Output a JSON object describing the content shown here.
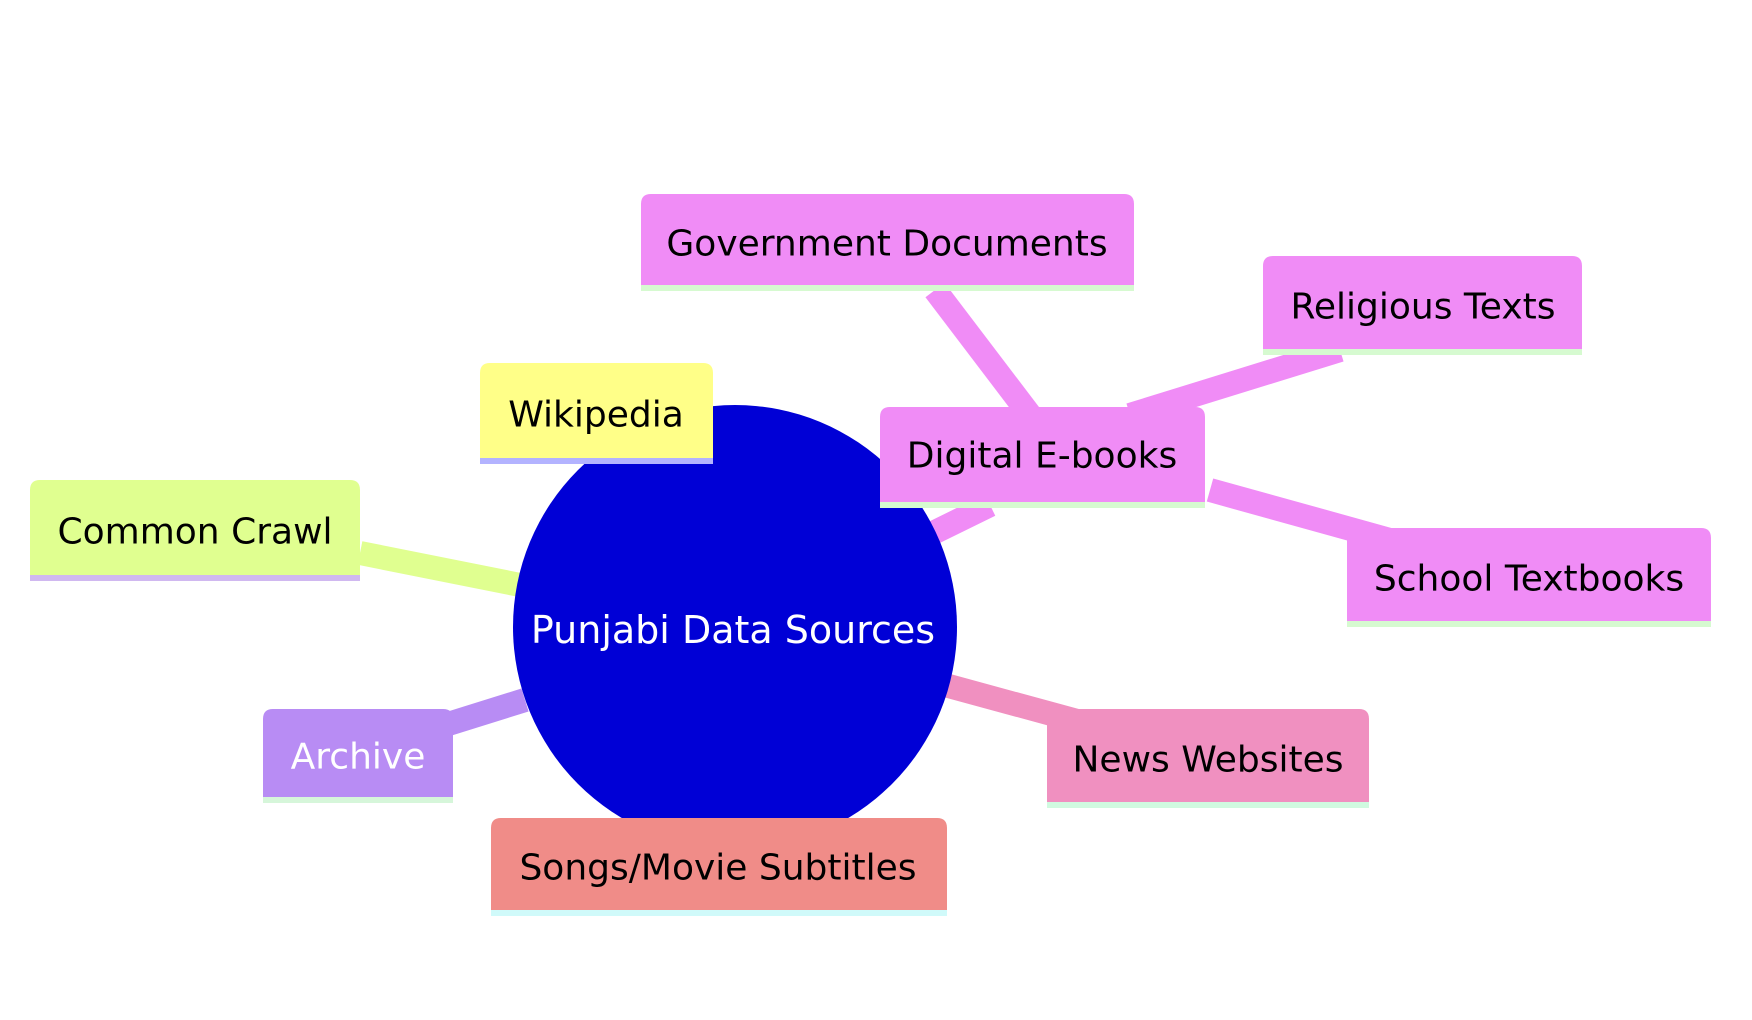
{
  "mindmap": {
    "root": {
      "label": "Punjabi Data Sources",
      "color": "#0000d6",
      "text_color": "#ffffff"
    },
    "nodes": {
      "wikipedia": {
        "label": "Wikipedia",
        "color": "#ffff88",
        "underline": "#b3b3ff",
        "text_color": "#000000"
      },
      "common_crawl": {
        "label": "Common Crawl",
        "color": "#e0ff90",
        "underline": "#d0b8f0",
        "text_color": "#000000"
      },
      "archive": {
        "label": "Archive",
        "color": "#b88cf4",
        "underline": "#d6f6da",
        "text_color": "#ffffff"
      },
      "songs_subtitles": {
        "label": "Songs/Movie Subtitles",
        "color": "#f08c88",
        "underline": "#d0fafa",
        "text_color": "#000000"
      },
      "news_websites": {
        "label": "News Websites",
        "color": "#f090c0",
        "underline": "#d0fae0",
        "text_color": "#000000"
      },
      "digital_ebooks": {
        "label": "Digital E-books",
        "color": "#f08cf6",
        "underline": "#d6fad0",
        "text_color": "#000000"
      },
      "government_documents": {
        "label": "Government Documents",
        "color": "#f08cf6",
        "underline": "#d6fad0",
        "text_color": "#000000"
      },
      "religious_texts": {
        "label": "Religious Texts",
        "color": "#f08cf6",
        "underline": "#d6fad0",
        "text_color": "#000000"
      },
      "school_textbooks": {
        "label": "School Textbooks",
        "color": "#f08cf6",
        "underline": "#d6fad0",
        "text_color": "#000000"
      }
    }
  }
}
